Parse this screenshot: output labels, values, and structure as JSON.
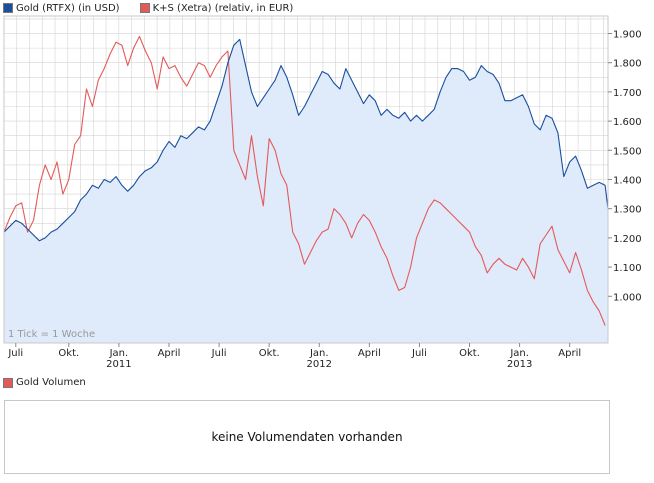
{
  "chart_data": {
    "type": "line",
    "series": [
      {
        "name": "Gold (RTFX) (in USD)",
        "color": "#1a4f9c",
        "fill": "#dfeafb",
        "points": [
          [
            0,
            1.22
          ],
          [
            2,
            1.24
          ],
          [
            4,
            1.26
          ],
          [
            6,
            1.25
          ],
          [
            8,
            1.23
          ],
          [
            10,
            1.21
          ],
          [
            12,
            1.19
          ],
          [
            14,
            1.2
          ],
          [
            16,
            1.22
          ],
          [
            18,
            1.23
          ],
          [
            20,
            1.25
          ],
          [
            22,
            1.27
          ],
          [
            24,
            1.29
          ],
          [
            26,
            1.33
          ],
          [
            28,
            1.35
          ],
          [
            30,
            1.38
          ],
          [
            32,
            1.37
          ],
          [
            34,
            1.4
          ],
          [
            36,
            1.39
          ],
          [
            38,
            1.41
          ],
          [
            40,
            1.38
          ],
          [
            42,
            1.36
          ],
          [
            44,
            1.38
          ],
          [
            46,
            1.41
          ],
          [
            48,
            1.43
          ],
          [
            50,
            1.44
          ],
          [
            52,
            1.46
          ],
          [
            54,
            1.5
          ],
          [
            56,
            1.53
          ],
          [
            58,
            1.51
          ],
          [
            60,
            1.55
          ],
          [
            62,
            1.54
          ],
          [
            64,
            1.56
          ],
          [
            66,
            1.58
          ],
          [
            68,
            1.57
          ],
          [
            70,
            1.6
          ],
          [
            72,
            1.66
          ],
          [
            74,
            1.72
          ],
          [
            76,
            1.8
          ],
          [
            78,
            1.86
          ],
          [
            80,
            1.88
          ],
          [
            82,
            1.79
          ],
          [
            84,
            1.7
          ],
          [
            86,
            1.65
          ],
          [
            88,
            1.68
          ],
          [
            90,
            1.71
          ],
          [
            92,
            1.74
          ],
          [
            94,
            1.79
          ],
          [
            96,
            1.75
          ],
          [
            98,
            1.69
          ],
          [
            100,
            1.62
          ],
          [
            102,
            1.65
          ],
          [
            104,
            1.69
          ],
          [
            106,
            1.73
          ],
          [
            108,
            1.77
          ],
          [
            110,
            1.76
          ],
          [
            112,
            1.73
          ],
          [
            114,
            1.71
          ],
          [
            116,
            1.78
          ],
          [
            118,
            1.74
          ],
          [
            120,
            1.7
          ],
          [
            122,
            1.66
          ],
          [
            124,
            1.69
          ],
          [
            126,
            1.67
          ],
          [
            128,
            1.62
          ],
          [
            130,
            1.64
          ],
          [
            132,
            1.62
          ],
          [
            134,
            1.61
          ],
          [
            136,
            1.63
          ],
          [
            138,
            1.6
          ],
          [
            140,
            1.62
          ],
          [
            142,
            1.6
          ],
          [
            144,
            1.62
          ],
          [
            146,
            1.64
          ],
          [
            148,
            1.7
          ],
          [
            150,
            1.75
          ],
          [
            152,
            1.78
          ],
          [
            154,
            1.78
          ],
          [
            156,
            1.77
          ],
          [
            158,
            1.74
          ],
          [
            160,
            1.75
          ],
          [
            162,
            1.79
          ],
          [
            164,
            1.77
          ],
          [
            166,
            1.76
          ],
          [
            168,
            1.73
          ],
          [
            170,
            1.67
          ],
          [
            172,
            1.67
          ],
          [
            174,
            1.68
          ],
          [
            176,
            1.69
          ],
          [
            178,
            1.65
          ],
          [
            180,
            1.59
          ],
          [
            182,
            1.57
          ],
          [
            184,
            1.62
          ],
          [
            186,
            1.61
          ],
          [
            188,
            1.56
          ],
          [
            190,
            1.41
          ],
          [
            192,
            1.46
          ],
          [
            194,
            1.48
          ],
          [
            196,
            1.43
          ],
          [
            198,
            1.37
          ],
          [
            200,
            1.38
          ],
          [
            202,
            1.39
          ],
          [
            204,
            1.38
          ],
          [
            205,
            1.3
          ]
        ]
      },
      {
        "name": "K+S (Xetra) (relativ, in EUR)",
        "color": "#e45a5a",
        "points": [
          [
            0,
            1.22
          ],
          [
            2,
            1.27
          ],
          [
            4,
            1.31
          ],
          [
            6,
            1.32
          ],
          [
            8,
            1.22
          ],
          [
            10,
            1.26
          ],
          [
            12,
            1.38
          ],
          [
            14,
            1.45
          ],
          [
            16,
            1.4
          ],
          [
            18,
            1.46
          ],
          [
            20,
            1.35
          ],
          [
            22,
            1.4
          ],
          [
            24,
            1.52
          ],
          [
            26,
            1.55
          ],
          [
            28,
            1.71
          ],
          [
            30,
            1.65
          ],
          [
            32,
            1.74
          ],
          [
            34,
            1.78
          ],
          [
            36,
            1.83
          ],
          [
            38,
            1.87
          ],
          [
            40,
            1.86
          ],
          [
            42,
            1.79
          ],
          [
            44,
            1.85
          ],
          [
            46,
            1.89
          ],
          [
            48,
            1.84
          ],
          [
            50,
            1.8
          ],
          [
            52,
            1.71
          ],
          [
            54,
            1.82
          ],
          [
            56,
            1.78
          ],
          [
            58,
            1.79
          ],
          [
            60,
            1.75
          ],
          [
            62,
            1.72
          ],
          [
            64,
            1.76
          ],
          [
            66,
            1.8
          ],
          [
            68,
            1.79
          ],
          [
            70,
            1.75
          ],
          [
            72,
            1.79
          ],
          [
            74,
            1.82
          ],
          [
            76,
            1.84
          ],
          [
            78,
            1.5
          ],
          [
            80,
            1.45
          ],
          [
            82,
            1.4
          ],
          [
            84,
            1.55
          ],
          [
            86,
            1.41
          ],
          [
            88,
            1.31
          ],
          [
            90,
            1.54
          ],
          [
            92,
            1.5
          ],
          [
            94,
            1.42
          ],
          [
            96,
            1.38
          ],
          [
            98,
            1.22
          ],
          [
            100,
            1.18
          ],
          [
            102,
            1.11
          ],
          [
            104,
            1.15
          ],
          [
            106,
            1.19
          ],
          [
            108,
            1.22
          ],
          [
            110,
            1.23
          ],
          [
            112,
            1.3
          ],
          [
            114,
            1.28
          ],
          [
            116,
            1.25
          ],
          [
            118,
            1.2
          ],
          [
            120,
            1.25
          ],
          [
            122,
            1.28
          ],
          [
            124,
            1.26
          ],
          [
            126,
            1.22
          ],
          [
            128,
            1.17
          ],
          [
            130,
            1.13
          ],
          [
            132,
            1.07
          ],
          [
            134,
            1.02
          ],
          [
            136,
            1.03
          ],
          [
            138,
            1.1
          ],
          [
            140,
            1.2
          ],
          [
            142,
            1.25
          ],
          [
            144,
            1.3
          ],
          [
            146,
            1.33
          ],
          [
            148,
            1.32
          ],
          [
            150,
            1.3
          ],
          [
            152,
            1.28
          ],
          [
            154,
            1.26
          ],
          [
            156,
            1.24
          ],
          [
            158,
            1.22
          ],
          [
            160,
            1.17
          ],
          [
            162,
            1.14
          ],
          [
            164,
            1.08
          ],
          [
            166,
            1.11
          ],
          [
            168,
            1.13
          ],
          [
            170,
            1.11
          ],
          [
            172,
            1.1
          ],
          [
            174,
            1.09
          ],
          [
            176,
            1.13
          ],
          [
            178,
            1.1
          ],
          [
            180,
            1.06
          ],
          [
            182,
            1.18
          ],
          [
            184,
            1.21
          ],
          [
            186,
            1.24
          ],
          [
            188,
            1.16
          ],
          [
            190,
            1.12
          ],
          [
            192,
            1.08
          ],
          [
            194,
            1.15
          ],
          [
            196,
            1.09
          ],
          [
            198,
            1.02
          ],
          [
            200,
            0.98
          ],
          [
            202,
            0.95
          ],
          [
            204,
            0.9
          ]
        ]
      }
    ],
    "y_ticks": [
      1.0,
      1.1,
      1.2,
      1.3,
      1.4,
      1.5,
      1.6,
      1.7,
      1.8,
      1.9
    ],
    "y_tick_labels": [
      "1.000",
      "1.100",
      "1.200",
      "1.300",
      "1.400",
      "1.500",
      "1.600",
      "1.700",
      "1.800",
      "1.900"
    ],
    "ylim": [
      0.84,
      1.96
    ],
    "xlim": [
      0,
      205
    ],
    "x_ticks": [
      {
        "x": 4,
        "label": "Juli"
      },
      {
        "x": 22,
        "label": "Okt."
      },
      {
        "x": 39,
        "label": "Jan.",
        "year": "2011"
      },
      {
        "x": 56,
        "label": "April"
      },
      {
        "x": 73,
        "label": "Juli"
      },
      {
        "x": 90,
        "label": "Okt."
      },
      {
        "x": 107,
        "label": "Jan.",
        "year": "2012"
      },
      {
        "x": 124,
        "label": "April"
      },
      {
        "x": 141,
        "label": "Juli"
      },
      {
        "x": 158,
        "label": "Okt."
      },
      {
        "x": 175,
        "label": "Jan.",
        "year": "2013"
      },
      {
        "x": 192,
        "label": "April"
      }
    ],
    "annotation": "1 Tick = 1 Woche"
  },
  "legend": {
    "gold_label": "Gold (RTFX) (in USD)",
    "ks_label": "K+S (Xetra) (relativ, in EUR)"
  },
  "volume": {
    "legend_label": "Gold Volumen",
    "empty_message": "keine Volumendaten vorhanden"
  },
  "colors": {
    "gold_line": "#1a4f9c",
    "gold_fill": "#dfeafb",
    "ks_line": "#e45a5a",
    "volume_swatch": "#e45a5a",
    "grid": "#d4d4d4"
  }
}
